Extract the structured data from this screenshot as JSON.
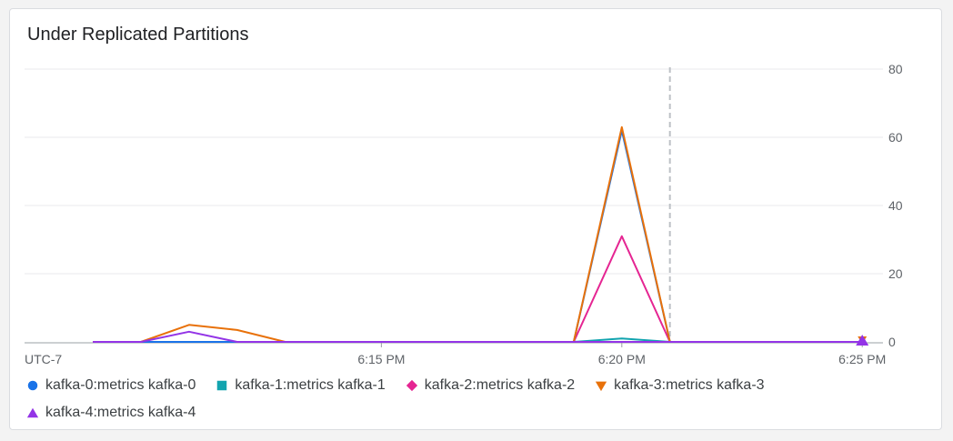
{
  "chart_data": {
    "type": "line",
    "title": "Under Replicated Partitions",
    "timezone_label": "UTC-7",
    "x": [
      "6:09",
      "6:10",
      "6:11",
      "6:12",
      "6:13",
      "6:14",
      "6:15",
      "6:16",
      "6:17",
      "6:18",
      "6:19",
      "6:20",
      "6:21",
      "6:22",
      "6:23",
      "6:24",
      "6:25"
    ],
    "x_ticks": [
      {
        "value": "6:15",
        "label": "6:15 PM"
      },
      {
        "value": "6:20",
        "label": "6:20 PM"
      },
      {
        "value": "6:25",
        "label": "6:25 PM"
      }
    ],
    "y_ticks": [
      0,
      20,
      40,
      60,
      80
    ],
    "ylim": [
      0,
      80
    ],
    "vertical_marker_x": "6:21",
    "legend_position": "bottom",
    "series": [
      {
        "name": "kafka-0:metrics kafka-0",
        "color": "#1a73e8",
        "marker": "circle",
        "values": [
          0,
          0,
          0,
          0,
          0,
          0,
          0,
          0,
          0,
          0,
          0,
          62,
          0,
          0,
          0,
          0,
          0
        ]
      },
      {
        "name": "kafka-1:metrics kafka-1",
        "color": "#12a4af",
        "marker": "square",
        "values": [
          0,
          0,
          0,
          0,
          0,
          0,
          0,
          0,
          0,
          0,
          0,
          1,
          0,
          0,
          0,
          0,
          0
        ]
      },
      {
        "name": "kafka-2:metrics kafka-2",
        "color": "#e52592",
        "marker": "diamond",
        "values": [
          0,
          0,
          0,
          0,
          0,
          0,
          0,
          0,
          0,
          0,
          0,
          31,
          0,
          0,
          0,
          0,
          0
        ]
      },
      {
        "name": "kafka-3:metrics kafka-3",
        "color": "#e8710a",
        "marker": "triangle-down",
        "values": [
          0,
          0,
          5,
          3.5,
          0,
          0,
          0,
          0,
          0,
          0,
          0,
          63,
          0,
          0,
          0,
          0,
          0
        ]
      },
      {
        "name": "kafka-4:metrics kafka-4",
        "color": "#9334e6",
        "marker": "triangle-up",
        "values": [
          0,
          0,
          3,
          0,
          0,
          0,
          0,
          0,
          0,
          0,
          0,
          0,
          0,
          0,
          0,
          0,
          0
        ]
      }
    ]
  }
}
